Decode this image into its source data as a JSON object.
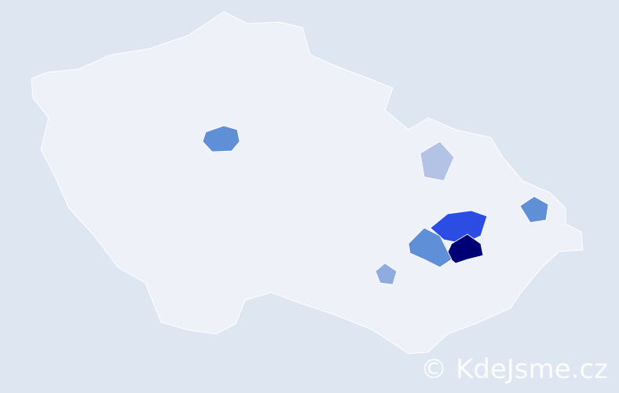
{
  "watermark": "© KdeJsme.cz",
  "colors": {
    "background": "#dee6f1",
    "base_region": "#eef1f8",
    "border": "#ffffff",
    "levels": [
      "#e6e9f1",
      "#cdd6ec",
      "#b3c3e6",
      "#8facdf",
      "#5f8fd6",
      "#2c4de3",
      "#000075"
    ]
  },
  "regions": [
    {
      "name": "",
      "level": 4
    },
    {
      "name": "",
      "level": 5
    },
    {
      "name": "",
      "level": 6
    },
    {
      "name": "",
      "level": 4
    },
    {
      "name": "",
      "level": 4
    },
    {
      "name": "",
      "level": 3
    },
    {
      "name": "",
      "level": 2
    }
  ]
}
